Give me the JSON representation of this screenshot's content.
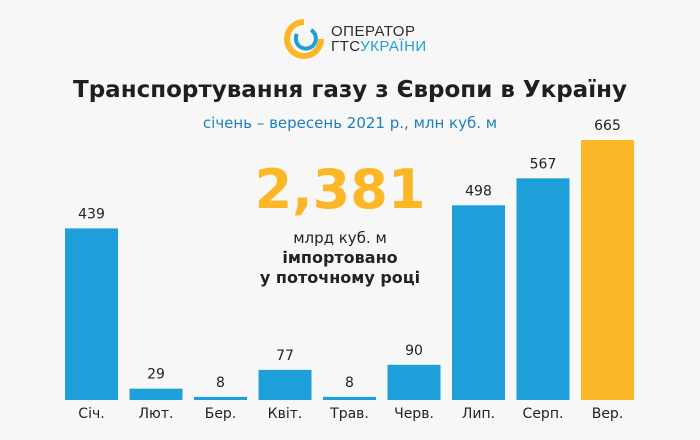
{
  "logo": {
    "line1": "ОПЕРАТОР",
    "line2a": "ГТС",
    "line2b": "УКРАЇНИ"
  },
  "chart_data": {
    "type": "bar",
    "title": "Транспортування газу з Європи в Україну",
    "subtitle": "січень – вересень 2021 р., млн куб. м",
    "categories": [
      "Січ.",
      "Лют.",
      "Бер.",
      "Квіт.",
      "Трав.",
      "Черв.",
      "Лип.",
      "Серп.",
      "Вер."
    ],
    "values": [
      439,
      29,
      8,
      77,
      8,
      90,
      498,
      567,
      665
    ],
    "highlight_index": 8,
    "colors": {
      "bar": "#1e9fda",
      "highlight": "#fbb726"
    }
  },
  "callout": {
    "value": "2,381",
    "unit": "млрд куб. м",
    "line1": "імпортовано",
    "line2": "у поточному році"
  }
}
